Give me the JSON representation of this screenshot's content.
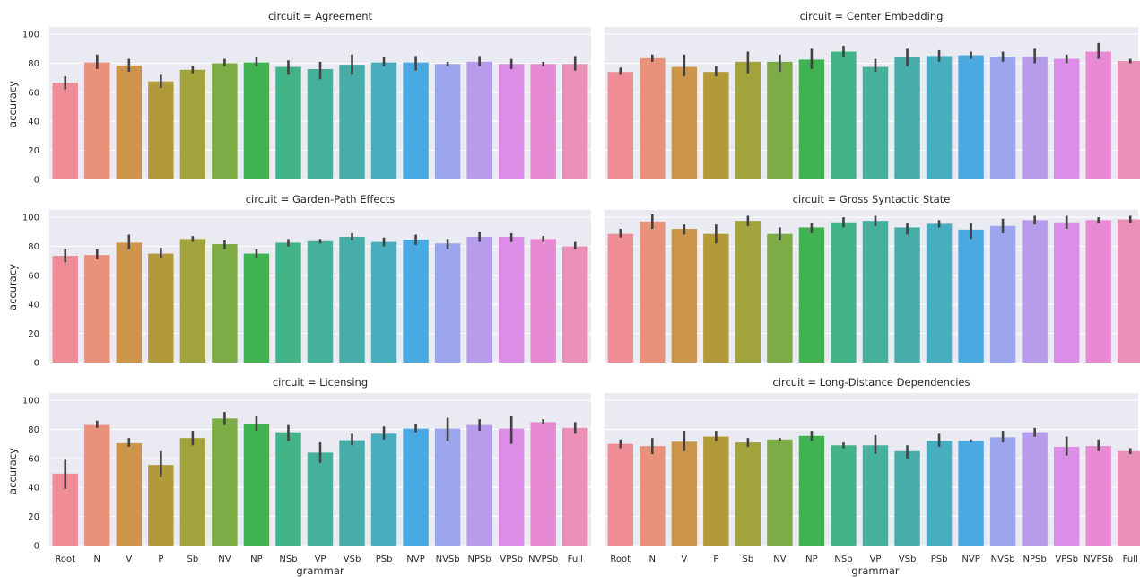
{
  "chart_data": {
    "type": "bar",
    "layout": "facet-grid",
    "xlabel": "grammar",
    "ylabel": "accuracy",
    "ylim": [
      0,
      105
    ],
    "yticks": [
      0,
      20,
      40,
      60,
      80,
      100
    ],
    "grid": true,
    "categories": [
      "Root",
      "N",
      "V",
      "P",
      "Sb",
      "NV",
      "NP",
      "NSb",
      "VP",
      "VSb",
      "PSb",
      "NVP",
      "NVSb",
      "NPSb",
      "VPSb",
      "NVPSb",
      "Full"
    ],
    "colors": [
      "#f08c95",
      "#e8927c",
      "#cc964a",
      "#b39a38",
      "#a3a33e",
      "#7dab45",
      "#3fb34f",
      "#43b388",
      "#45b09c",
      "#46ada9",
      "#48adbf",
      "#4aa9e0",
      "#9ba5eb",
      "#b79ceb",
      "#dc8de8",
      "#e889d3",
      "#ea8fb6"
    ],
    "panels": [
      {
        "title": "circuit = Agreement",
        "values": [
          66.5,
          80.5,
          78.5,
          67.5,
          75.5,
          80,
          80.5,
          77.5,
          76,
          79,
          80.5,
          80.5,
          79.5,
          81,
          79.5,
          79.5,
          79.5
        ],
        "err_low": [
          62,
          76,
          74,
          63,
          73,
          78,
          78,
          72,
          69,
          72,
          78,
          75,
          78,
          78,
          76,
          78,
          75
        ],
        "err_high": [
          71,
          86,
          83,
          72,
          78,
          83,
          84,
          82,
          81,
          86,
          84,
          85,
          81,
          85,
          83,
          81,
          85
        ]
      },
      {
        "title": "circuit = Center Embedding",
        "values": [
          74,
          83.5,
          77.5,
          74,
          81,
          81,
          82.5,
          88,
          77.5,
          84,
          85,
          85.5,
          84.5,
          84.5,
          83,
          88,
          81.5
        ],
        "err_low": [
          72,
          81,
          71,
          71,
          73,
          74,
          76,
          84,
          74,
          78,
          81,
          83,
          81,
          80,
          80,
          83,
          80
        ],
        "err_high": [
          77,
          86,
          86,
          78,
          88,
          86,
          90,
          92,
          83,
          90,
          89,
          88,
          88,
          90,
          86,
          94,
          83
        ]
      },
      {
        "title": "circuit = Garden-Path Effects",
        "values": [
          73.5,
          74,
          82.5,
          75,
          85,
          81.5,
          75,
          82.5,
          83.5,
          86.5,
          83,
          84.5,
          82,
          86.5,
          86.5,
          85,
          80
        ],
        "err_low": [
          69,
          71,
          78,
          72,
          83,
          78,
          72,
          80,
          82,
          84,
          80,
          81,
          78,
          83,
          83,
          83,
          78
        ],
        "err_high": [
          78,
          78,
          88,
          79,
          87,
          84,
          78,
          85,
          85,
          89,
          86,
          88,
          85,
          90,
          89,
          87,
          83
        ]
      },
      {
        "title": "circuit = Gross Syntactic State",
        "values": [
          88.5,
          97,
          92,
          88.5,
          97.5,
          88.5,
          93,
          96.5,
          97.5,
          93,
          95.5,
          91.5,
          94,
          98,
          96.5,
          98,
          98.5
        ],
        "err_low": [
          86,
          92,
          88,
          82,
          94,
          84,
          89,
          93,
          94,
          88,
          93,
          85,
          89,
          95,
          92,
          96,
          96
        ],
        "err_high": [
          92,
          102,
          95,
          95,
          101,
          93,
          96,
          100,
          101,
          96,
          98,
          96,
          99,
          101,
          101,
          100,
          101
        ]
      },
      {
        "title": "circuit = Licensing",
        "values": [
          49.5,
          83,
          70.5,
          55.5,
          74,
          87.5,
          84,
          78,
          64,
          72.5,
          77,
          80.5,
          80.5,
          83,
          80.5,
          85,
          81
        ],
        "err_low": [
          39,
          81,
          68,
          47,
          69,
          83,
          79,
          72,
          57,
          69,
          73,
          78,
          72,
          79,
          70,
          84,
          77
        ],
        "err_high": [
          59,
          86,
          74,
          65,
          79,
          92,
          89,
          83,
          71,
          77,
          82,
          84,
          88,
          87,
          89,
          87,
          85
        ]
      },
      {
        "title": "circuit = Long-Distance Dependencies",
        "values": [
          70,
          68.5,
          71.5,
          75,
          71,
          73,
          75.5,
          69,
          69,
          65,
          72,
          72,
          74.5,
          78,
          68,
          68.5,
          65
        ],
        "err_low": [
          67,
          63,
          65,
          72,
          68,
          72,
          72,
          67,
          63,
          60,
          68,
          71,
          71,
          75,
          62,
          65,
          63
        ],
        "err_high": [
          73,
          74,
          79,
          79,
          74,
          74,
          79,
          71,
          76,
          69,
          77,
          73,
          79,
          81,
          75,
          73,
          67
        ]
      }
    ]
  }
}
